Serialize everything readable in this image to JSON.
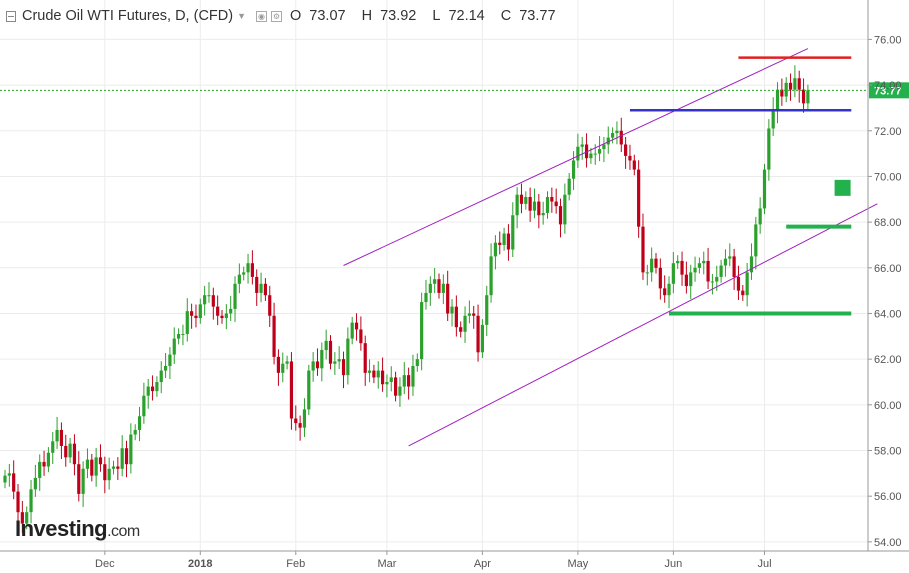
{
  "header": {
    "title": "Crude Oil WTI Futures, D, (CFD)",
    "open_label": "O",
    "open": "73.07",
    "high_label": "H",
    "high": "73.92",
    "low_label": "L",
    "low": "72.14",
    "close_label": "C",
    "close": "73.77"
  },
  "logo": {
    "brand": "Investing",
    "suffix": ".com"
  },
  "price_badge": "73.77",
  "colors": {
    "up": "#2ca02c",
    "down": "#c0001a",
    "channel": "#a020c0",
    "resistance": "#e02020",
    "support_blue": "#3333cc",
    "support_green": "#22b14c",
    "last_price_line": "#22aa22",
    "badge": "#22b14c"
  },
  "chart_data": {
    "type": "candlestick",
    "title": "Crude Oil WTI Futures, D, (CFD)",
    "y_axis": {
      "ticks": [
        "54.00",
        "56.00",
        "58.00",
        "60.00",
        "62.00",
        "64.00",
        "66.00",
        "68.00",
        "70.00",
        "72.00",
        "74.00",
        "76.00"
      ],
      "range": [
        53.6,
        77.2
      ],
      "position": "right"
    },
    "x_axis": {
      "labels": [
        "Dec",
        "2018",
        "Feb",
        "Mar",
        "Apr",
        "May",
        "Jun",
        "Jul"
      ],
      "label_days": [
        23,
        45,
        67,
        88,
        110,
        132,
        154,
        175
      ]
    },
    "grid": true,
    "last_price": 73.77,
    "series_closes": [
      56.9,
      57.0,
      56.2,
      55.3,
      54.8,
      55.3,
      56.3,
      56.8,
      57.5,
      57.3,
      57.9,
      58.4,
      58.9,
      58.2,
      57.7,
      58.3,
      57.4,
      56.1,
      57.2,
      57.6,
      56.9,
      57.7,
      57.4,
      56.7,
      57.2,
      57.3,
      57.2,
      58.1,
      57.4,
      58.7,
      58.9,
      59.5,
      60.4,
      60.8,
      60.6,
      61.0,
      61.5,
      61.7,
      62.2,
      62.9,
      63.1,
      63.1,
      64.1,
      63.9,
      63.8,
      64.4,
      64.8,
      64.8,
      64.3,
      63.9,
      63.8,
      64.0,
      64.2,
      65.3,
      65.7,
      65.8,
      66.2,
      65.6,
      64.9,
      65.3,
      64.8,
      63.9,
      62.1,
      61.4,
      61.8,
      61.9,
      59.4,
      59.2,
      59.0,
      59.8,
      61.5,
      61.9,
      61.6,
      62.4,
      62.8,
      61.8,
      61.9,
      62.0,
      61.3,
      62.9,
      63.6,
      63.3,
      62.7,
      61.4,
      61.5,
      61.2,
      61.5,
      60.9,
      61.0,
      61.2,
      60.4,
      60.8,
      61.3,
      60.8,
      61.7,
      62.0,
      64.5,
      64.9,
      65.3,
      65.5,
      64.9,
      65.3,
      64.0,
      64.3,
      63.4,
      63.2,
      63.9,
      64.0,
      63.9,
      62.3,
      63.5,
      64.8,
      66.5,
      67.1,
      67.0,
      67.5,
      66.8,
      68.3,
      69.2,
      68.8,
      69.1,
      68.5,
      68.9,
      68.3,
      68.4,
      69.1,
      68.9,
      68.7,
      67.9,
      69.2,
      69.9,
      70.7,
      71.3,
      71.4,
      70.8,
      71.0,
      71.0,
      71.2,
      71.4,
      71.7,
      71.9,
      72.0,
      71.4,
      70.9,
      70.7,
      70.3,
      67.8,
      65.8,
      65.8,
      66.4,
      66.0,
      65.1,
      64.8,
      65.3,
      66.2,
      66.3,
      65.7,
      65.2,
      65.8,
      66.0,
      66.2,
      66.3,
      65.4,
      65.4,
      65.6,
      66.1,
      66.4,
      66.5,
      65.6,
      65.0,
      64.8,
      65.8,
      66.5,
      67.9,
      68.6,
      70.3,
      72.1,
      72.9,
      73.8,
      73.5,
      74.1,
      73.8,
      74.3,
      73.8,
      73.2,
      73.77
    ],
    "annotations": [
      {
        "type": "channel-line",
        "from": [
          78,
          66.1
        ],
        "to": [
          185,
          75.6
        ]
      },
      {
        "type": "channel-line",
        "from": [
          93,
          58.2
        ],
        "to": [
          201,
          68.8
        ]
      },
      {
        "type": "horizontal-level",
        "value": 75.2,
        "from_day": 169,
        "to_day": 195
      },
      {
        "type": "horizontal-level",
        "value": 72.9,
        "from_day": 144,
        "to_day": 195
      },
      {
        "type": "support-zone",
        "value": 69.5,
        "from_day": 190,
        "to_day": 193
      },
      {
        "type": "horizontal-level",
        "value": 67.8,
        "from_day": 180,
        "to_day": 195
      },
      {
        "type": "horizontal-level",
        "value": 64.0,
        "from_day": 153,
        "to_day": 195
      }
    ]
  }
}
